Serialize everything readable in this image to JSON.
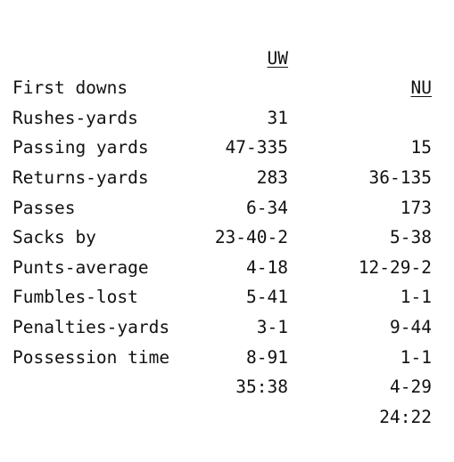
{
  "header": {
    "team_a": "UW",
    "team_b": "NU"
  },
  "rows": [
    {
      "label": "First downs",
      "a": "31",
      "b": "15"
    },
    {
      "label": "Rushes-yards",
      "a": "47-335",
      "b": "36-135"
    },
    {
      "label": "Passing yards",
      "a": "283",
      "b": "173"
    },
    {
      "label": "Returns-yards",
      "a": "6-34",
      "b": "5-38"
    },
    {
      "label": "Passes",
      "a": "23-40-2",
      "b": "12-29-2"
    },
    {
      "label": "Sacks by",
      "a": "4-18",
      "b": "1-1"
    },
    {
      "label": "Punts-average",
      "a": "5-41",
      "b": "9-44"
    },
    {
      "label": "Fumbles-lost",
      "a": "3-1",
      "b": "1-1"
    },
    {
      "label": "Penalties-yards",
      "a": "8-91",
      "b": "4-29"
    },
    {
      "label": "Possession time",
      "a": "35:38",
      "b": "24:22"
    }
  ]
}
